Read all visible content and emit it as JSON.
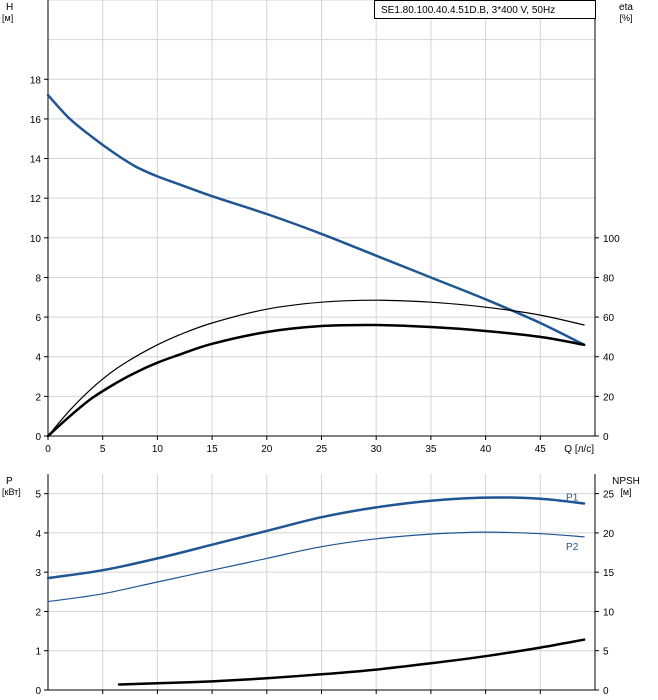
{
  "chart_data": [
    {
      "type": "line",
      "legend": "SE1.80.100.40.4.51D.B, 3*400 V, 50Hz",
      "xlabel": "Q [л/с]",
      "xlim": [
        0,
        50
      ],
      "xticks": [
        0,
        5,
        10,
        15,
        20,
        25,
        30,
        35,
        40,
        45
      ],
      "ylabel_left": "H",
      "ylabel_left_unit": "[м]",
      "ylim_left": [
        0,
        22
      ],
      "yticks_left": [
        0,
        2,
        4,
        6,
        8,
        10,
        12,
        14,
        16,
        18
      ],
      "ylabel_right": "eta",
      "ylabel_right_unit": "[%]",
      "ylim_right": [
        0,
        220
      ],
      "yticks_right": [
        0,
        20,
        40,
        60,
        80,
        100
      ],
      "grid": true,
      "series": [
        {
          "axis": "left",
          "color": "#1f5592",
          "width": 2.5,
          "x": [
            0,
            2,
            4,
            6,
            8,
            10,
            12,
            15,
            20,
            25,
            30,
            35,
            40,
            45,
            49
          ],
          "y": [
            17.2,
            16.0,
            15.1,
            14.3,
            13.6,
            13.1,
            12.7,
            12.1,
            11.2,
            10.2,
            9.1,
            8.0,
            6.9,
            5.7,
            4.6
          ]
        },
        {
          "axis": "right",
          "color": "#000000",
          "width": 1.2,
          "x": [
            0,
            2,
            4,
            6,
            8,
            10,
            12,
            15,
            20,
            25,
            30,
            35,
            40,
            45,
            49
          ],
          "y": [
            0,
            13,
            24,
            33,
            40,
            46,
            51,
            57,
            64,
            67.5,
            68.5,
            67.5,
            65,
            61,
            56
          ]
        },
        {
          "axis": "right",
          "color": "#000000",
          "width": 2.5,
          "x": [
            0,
            2,
            4,
            6,
            8,
            10,
            12,
            15,
            20,
            25,
            30,
            35,
            40,
            45,
            49
          ],
          "y": [
            0,
            10,
            19,
            26,
            32,
            37,
            41,
            46.5,
            52.5,
            55.5,
            56,
            55,
            53,
            50,
            46
          ]
        }
      ]
    },
    {
      "type": "line",
      "xlim": [
        0,
        50
      ],
      "ylabel_left": "P",
      "ylabel_left_unit": "[кВт]",
      "ylim_left": [
        0,
        5.5
      ],
      "yticks_left": [
        0,
        1,
        2,
        3,
        4,
        5
      ],
      "ylabel_right": "NPSH",
      "ylabel_right_unit": "[м]",
      "ylim_right": [
        0,
        27.5
      ],
      "yticks_right": [
        0,
        5,
        10,
        15,
        20,
        25
      ],
      "grid": true,
      "series": [
        {
          "name": "P1",
          "axis": "left",
          "color": "#1f5592",
          "width": 2.5,
          "x": [
            0,
            5,
            10,
            15,
            20,
            25,
            30,
            35,
            40,
            45,
            49
          ],
          "y": [
            2.85,
            3.05,
            3.35,
            3.7,
            4.05,
            4.4,
            4.65,
            4.82,
            4.9,
            4.87,
            4.75
          ]
        },
        {
          "name": "P2",
          "axis": "left",
          "color": "#1f5592",
          "width": 1.2,
          "x": [
            0,
            5,
            10,
            15,
            20,
            25,
            30,
            35,
            40,
            45,
            49
          ],
          "y": [
            2.25,
            2.45,
            2.75,
            3.05,
            3.35,
            3.65,
            3.85,
            3.97,
            4.02,
            3.98,
            3.9
          ]
        },
        {
          "axis": "right",
          "color": "#000000",
          "width": 2.5,
          "x": [
            6.5,
            10,
            15,
            20,
            25,
            30,
            35,
            40,
            45,
            49
          ],
          "y": [
            0.7,
            0.85,
            1.1,
            1.5,
            2.0,
            2.6,
            3.4,
            4.3,
            5.4,
            6.4
          ]
        }
      ]
    }
  ]
}
